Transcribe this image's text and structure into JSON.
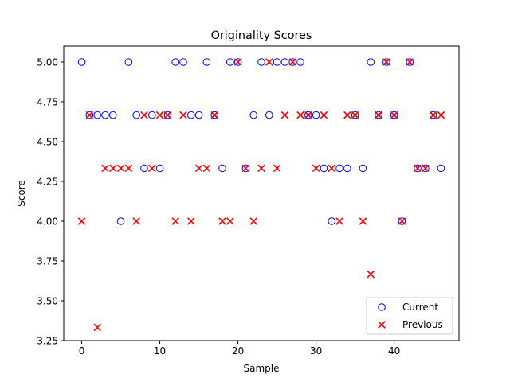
{
  "chart_data": {
    "type": "scatter",
    "title": "Originality Scores",
    "xlabel": "Sample",
    "ylabel": "Score",
    "xlim": [
      -2.3,
      48.3
    ],
    "ylim": [
      3.25,
      5.1
    ],
    "xticks": [
      0,
      10,
      20,
      30,
      40
    ],
    "yticks": [
      3.25,
      3.5,
      3.75,
      4.0,
      4.25,
      4.5,
      4.75,
      5.0
    ],
    "xtick_labels": [
      "0",
      "10",
      "20",
      "30",
      "40"
    ],
    "ytick_labels": [
      "3.25",
      "3.50",
      "3.75",
      "4.00",
      "4.25",
      "4.50",
      "4.75",
      "5.00"
    ],
    "grid": false,
    "legend_position": "bottom-right",
    "series": [
      {
        "name": "Current",
        "marker": "open-circle",
        "color": "#0000ff",
        "x": [
          0,
          1,
          2,
          3,
          4,
          5,
          6,
          7,
          8,
          9,
          10,
          11,
          12,
          13,
          14,
          15,
          16,
          17,
          18,
          19,
          20,
          21,
          22,
          23,
          24,
          25,
          26,
          27,
          28,
          29,
          30,
          31,
          32,
          33,
          34,
          35,
          36,
          37,
          38,
          39,
          40,
          41,
          42,
          43,
          44,
          45,
          46
        ],
        "y": [
          5.0,
          4.667,
          4.667,
          4.667,
          4.667,
          4.0,
          5.0,
          4.667,
          4.333,
          4.667,
          4.333,
          4.667,
          5.0,
          5.0,
          4.667,
          4.667,
          5.0,
          4.667,
          4.333,
          5.0,
          5.0,
          4.333,
          4.667,
          5.0,
          4.667,
          5.0,
          5.0,
          5.0,
          5.0,
          4.667,
          4.667,
          4.333,
          4.0,
          4.333,
          4.333,
          4.667,
          4.333,
          5.0,
          4.667,
          5.0,
          4.667,
          4.0,
          5.0,
          4.333,
          4.333,
          4.667,
          4.333
        ]
      },
      {
        "name": "Previous",
        "marker": "x",
        "color": "#ff0000",
        "x": [
          0,
          1,
          2,
          3,
          4,
          5,
          6,
          7,
          8,
          9,
          10,
          11,
          12,
          13,
          14,
          15,
          16,
          17,
          18,
          19,
          20,
          21,
          22,
          23,
          24,
          25,
          26,
          27,
          28,
          29,
          30,
          31,
          32,
          33,
          34,
          35,
          36,
          37,
          38,
          39,
          40,
          41,
          42,
          43,
          44,
          45,
          46
        ],
        "y": [
          4.0,
          4.667,
          3.333,
          4.333,
          4.333,
          4.333,
          4.333,
          4.0,
          4.667,
          4.333,
          4.667,
          4.667,
          4.0,
          4.667,
          4.0,
          4.333,
          4.333,
          4.667,
          4.0,
          4.0,
          5.0,
          4.333,
          4.0,
          4.333,
          5.0,
          4.333,
          4.667,
          5.0,
          4.667,
          4.667,
          4.333,
          4.667,
          4.333,
          4.0,
          4.667,
          4.667,
          4.0,
          3.667,
          4.667,
          5.0,
          4.667,
          4.0,
          5.0,
          4.333,
          4.333,
          4.667,
          4.667
        ]
      }
    ]
  }
}
